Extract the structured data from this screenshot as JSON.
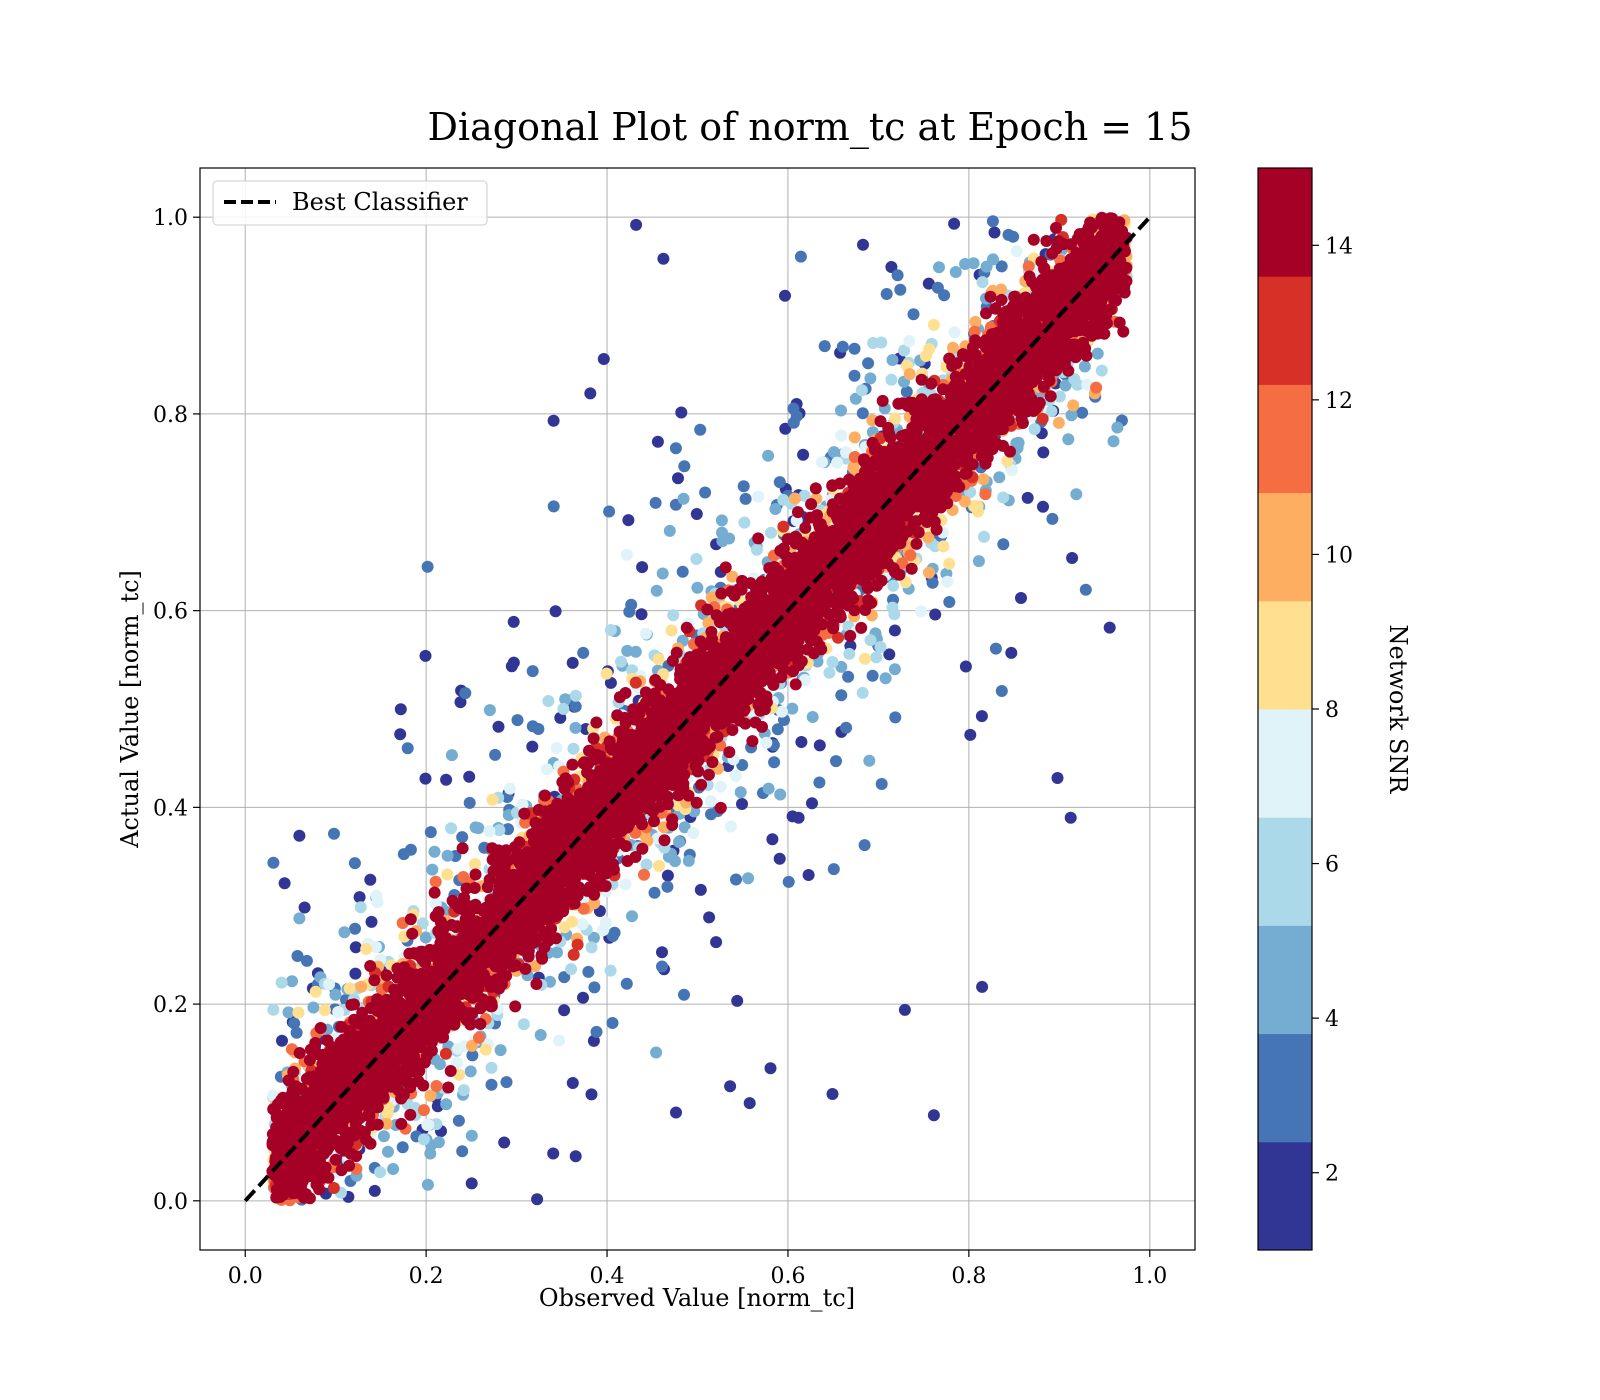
{
  "chart_data": {
    "type": "scatter",
    "title": "Diagonal Plot of norm_tc at Epoch = 15",
    "xlabel": "Observed Value [norm_tc]",
    "ylabel": "Actual Value [norm_tc]",
    "xlim": [
      -0.05,
      1.05
    ],
    "ylim": [
      -0.05,
      1.05
    ],
    "xticks": [
      "0.0",
      "0.2",
      "0.4",
      "0.6",
      "0.8",
      "1.0"
    ],
    "yticks": [
      "0.0",
      "0.2",
      "0.4",
      "0.6",
      "0.8",
      "1.0"
    ],
    "grid": true,
    "legend": {
      "placement": "upper-left",
      "entries": [
        {
          "label": "Best Classifier",
          "style": "black dashed line"
        }
      ]
    },
    "reference_line": {
      "name": "Best Classifier",
      "x": [
        0.0,
        1.0
      ],
      "y": [
        0.0,
        1.0
      ],
      "color": "#000000"
    },
    "colorbar": {
      "label": "Network SNR",
      "range": [
        1,
        15
      ],
      "ticks": [
        "2",
        "4",
        "6",
        "8",
        "10",
        "12",
        "14"
      ],
      "tick_values": [
        2,
        4,
        6,
        8,
        10,
        12,
        14
      ],
      "colors": [
        "#313695",
        "#4575b4",
        "#74add1",
        "#abd9e9",
        "#e0f3f8",
        "#fee090",
        "#fdae61",
        "#f46d43",
        "#d73027",
        "#a50026"
      ]
    },
    "scatter_description": {
      "point_count_approx": 9000,
      "snr_high_band_halfwidth": 0.08,
      "x_range_of_points": [
        0.03,
        0.98
      ],
      "y_range_of_points": [
        0.0,
        1.0
      ]
    }
  }
}
